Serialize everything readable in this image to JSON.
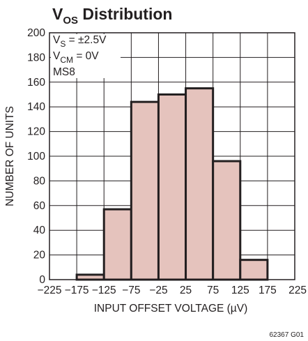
{
  "chart_data": {
    "type": "bar",
    "title": {
      "main": "V",
      "sub": "OS",
      "rest": " Distribution"
    },
    "xlabel": "INPUT OFFSET VOLTAGE (µV)",
    "ylabel": "NUMBER OF UNITS",
    "xlim": [
      -225,
      225
    ],
    "ylim": [
      0,
      200
    ],
    "bin_width": 50,
    "bins": [
      {
        "center": -150,
        "value": 4
      },
      {
        "center": -100,
        "value": 57
      },
      {
        "center": -50,
        "value": 144
      },
      {
        "center": 0,
        "value": 150
      },
      {
        "center": 50,
        "value": 155
      },
      {
        "center": 100,
        "value": 96
      },
      {
        "center": 150,
        "value": 16
      }
    ],
    "x_ticks": [
      "−225",
      "−175",
      "−125",
      "−75",
      "−25",
      "25",
      "75",
      "125",
      "175",
      "225"
    ],
    "y_ticks": [
      "0",
      "20",
      "40",
      "60",
      "80",
      "100",
      "120",
      "140",
      "160",
      "180",
      "200"
    ],
    "grid": true,
    "bar_color": "#e5c3bd",
    "annotations": [
      {
        "main": "V",
        "sub": "S",
        "rest": " = ±2.5V"
      },
      {
        "main": "V",
        "sub": "CM",
        "rest": " = 0V"
      },
      {
        "main": "MS8",
        "sub": "",
        "rest": ""
      }
    ],
    "figure_id": "62367 G01"
  }
}
